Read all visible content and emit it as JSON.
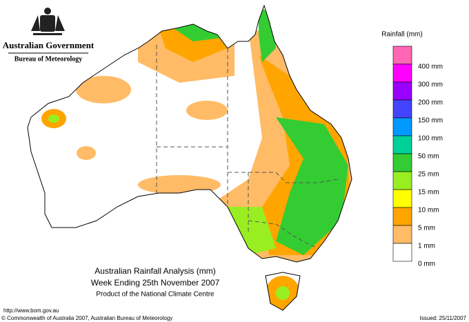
{
  "header": {
    "government": "Australian Government",
    "agency": "Bureau of Meteorology"
  },
  "legend": {
    "title": "Rainfall (mm)",
    "items": [
      {
        "label": "400 mm",
        "color": "#ff66b3"
      },
      {
        "label": "300 mm",
        "color": "#ff00ff"
      },
      {
        "label": "200 mm",
        "color": "#9900ff"
      },
      {
        "label": "150 mm",
        "color": "#4444ff"
      },
      {
        "label": "100 mm",
        "color": "#0099ff"
      },
      {
        "label": "50 mm",
        "color": "#00d199"
      },
      {
        "label": "25 mm",
        "color": "#33cc33"
      },
      {
        "label": "15 mm",
        "color": "#99ee22"
      },
      {
        "label": "10 mm",
        "color": "#ffff00"
      },
      {
        "label": "5 mm",
        "color": "#ffa500"
      },
      {
        "label": "1 mm",
        "color": "#ffbb66"
      },
      {
        "label": "0 mm",
        "color": "#ffffff"
      }
    ]
  },
  "caption": {
    "title": "Australian Rainfall Analysis (mm)",
    "subtitle": "Week Ending 25th November 2007",
    "credit": "Product of the National Climate Centre"
  },
  "footer": {
    "url": "http://www.bom.gov.au",
    "copyright": "© Commonwealth of Australia 2007, Australian Bureau of Meteorology",
    "issued": "Issued: 25/11/2007"
  }
}
